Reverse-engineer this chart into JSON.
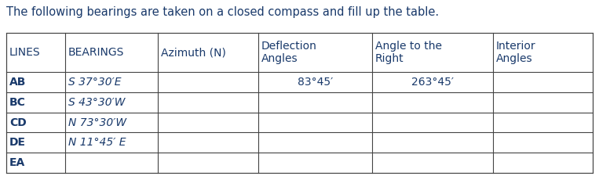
{
  "title": "The following bearings are taken on a closed compass and fill up the table.",
  "title_fontsize": 10.5,
  "background_color": "#ffffff",
  "col_headers": [
    "LINES",
    "BEARINGS",
    "Azimuth (N)",
    "Deflection\nAngles",
    "Angle to the\nRight",
    "Interior\nAngles"
  ],
  "col_header_fontsize": 10,
  "rows": [
    [
      "AB",
      "S 37°30′E",
      "",
      "83°45′",
      "263°45′",
      ""
    ],
    [
      "BC",
      "S 43°30′W",
      "",
      "",
      "",
      ""
    ],
    [
      "CD",
      "N 73°30′W",
      "",
      "",
      "",
      ""
    ],
    [
      "DE",
      "N 11°45′ E",
      "",
      "",
      "",
      ""
    ],
    [
      "EA",
      "",
      "",
      "",
      "",
      ""
    ]
  ],
  "row_fontsize": 10,
  "text_color": "#1a3a6b",
  "border_color": "#444444",
  "line_width": 0.8,
  "fig_width": 7.63,
  "fig_height": 2.25,
  "dpi": 100
}
